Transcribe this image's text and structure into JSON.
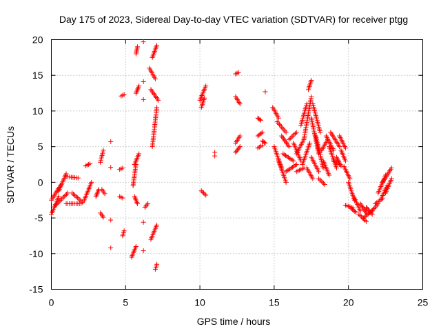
{
  "chart_data": {
    "type": "scatter",
    "title": "Day 175 of 2023, Sidereal Day-to-day VTEC variation (SDTVAR) for receiver ptgg",
    "xlabel": "GPS time / hours",
    "ylabel": "SDTVAR / TECUs",
    "xlim": [
      0,
      25
    ],
    "ylim": [
      -15,
      20
    ],
    "xticks": [
      "0",
      "5",
      "10",
      "15",
      "20",
      "25"
    ],
    "yticks": [
      "-15",
      "-10",
      "-5",
      "0",
      "5",
      "10",
      "15",
      "20"
    ],
    "grid": true,
    "marker": "+",
    "series": [
      {
        "name": "SDTVAR",
        "color": "#ff0000",
        "segments": [
          {
            "x0": 0.0,
            "y0": -4.5,
            "x1": 0.5,
            "y1": -2.0
          },
          {
            "x0": 0.0,
            "y0": -2.5,
            "x1": 0.6,
            "y1": -0.5
          },
          {
            "x0": 0.3,
            "y0": -3.2,
            "x1": 1.1,
            "y1": -1.5
          },
          {
            "x0": 0.5,
            "y0": -1.2,
            "x1": 1.0,
            "y1": 1.2
          },
          {
            "x0": 1.0,
            "y0": 0.8,
            "x1": 1.8,
            "y1": 0.6
          },
          {
            "x0": 1.0,
            "y0": -3.0,
            "x1": 2.0,
            "y1": -3.0
          },
          {
            "x0": 1.4,
            "y0": -1.5,
            "x1": 2.1,
            "y1": -2.8
          },
          {
            "x0": 2.2,
            "y0": -2.6,
            "x1": 2.7,
            "y1": 0.0
          },
          {
            "x0": 2.3,
            "y0": 2.3,
            "x1": 2.6,
            "y1": 2.6
          },
          {
            "x0": 3.0,
            "y0": -2.0,
            "x1": 3.2,
            "y1": -1.0
          },
          {
            "x0": 3.3,
            "y0": 2.8,
            "x1": 3.5,
            "y1": 4.5
          },
          {
            "x0": 3.3,
            "y0": -4.3,
            "x1": 3.5,
            "y1": -4.9
          },
          {
            "x0": 3.4,
            "y0": -1.0,
            "x1": 3.6,
            "y1": -1.6
          },
          {
            "x0": 4.7,
            "y0": 12.1,
            "x1": 4.9,
            "y1": 12.3
          },
          {
            "x0": 4.6,
            "y0": 1.8,
            "x1": 4.8,
            "y1": 2.0
          },
          {
            "x0": 4.6,
            "y0": -2.0,
            "x1": 4.8,
            "y1": -2.2
          },
          {
            "x0": 4.8,
            "y0": -7.5,
            "x1": 4.9,
            "y1": -6.8
          },
          {
            "x0": 5.4,
            "y0": -10.5,
            "x1": 5.7,
            "y1": -9.0
          },
          {
            "x0": 5.5,
            "y0": -0.5,
            "x1": 5.7,
            "y1": 2.5
          },
          {
            "x0": 5.6,
            "y0": 2.5,
            "x1": 5.9,
            "y1": 4.0
          },
          {
            "x0": 5.6,
            "y0": -2.0,
            "x1": 5.8,
            "y1": -3.0
          },
          {
            "x0": 5.7,
            "y0": 18.0,
            "x1": 5.8,
            "y1": 19.0
          },
          {
            "x0": 5.7,
            "y0": 12.5,
            "x1": 5.9,
            "y1": 13.5
          },
          {
            "x0": 6.3,
            "y0": -3.5,
            "x1": 6.5,
            "y1": -3.0
          },
          {
            "x0": 6.6,
            "y0": 16.0,
            "x1": 7.0,
            "y1": 14.5
          },
          {
            "x0": 6.7,
            "y0": 13.0,
            "x1": 7.2,
            "y1": 11.5
          },
          {
            "x0": 6.8,
            "y0": 5.0,
            "x1": 7.1,
            "y1": 10.5
          },
          {
            "x0": 6.8,
            "y0": 17.5,
            "x1": 7.1,
            "y1": 19.2
          },
          {
            "x0": 6.7,
            "y0": -8.0,
            "x1": 7.1,
            "y1": -6.0
          },
          {
            "x0": 7.0,
            "y0": -12.2,
            "x1": 7.1,
            "y1": -11.5
          },
          {
            "x0": 10.0,
            "y0": 11.5,
            "x1": 10.4,
            "y1": 13.5
          },
          {
            "x0": 10.1,
            "y0": 10.5,
            "x1": 10.3,
            "y1": 11.8
          },
          {
            "x0": 10.1,
            "y0": -1.2,
            "x1": 10.4,
            "y1": -1.8
          },
          {
            "x0": 12.4,
            "y0": 15.2,
            "x1": 12.6,
            "y1": 15.4
          },
          {
            "x0": 12.4,
            "y0": 12.0,
            "x1": 12.7,
            "y1": 11.0
          },
          {
            "x0": 12.4,
            "y0": 5.5,
            "x1": 12.7,
            "y1": 6.5
          },
          {
            "x0": 12.4,
            "y0": 4.2,
            "x1": 12.7,
            "y1": 5.0
          },
          {
            "x0": 13.9,
            "y0": 9.0,
            "x1": 14.1,
            "y1": 8.7
          },
          {
            "x0": 13.9,
            "y0": 6.5,
            "x1": 14.2,
            "y1": 7.0
          },
          {
            "x0": 13.9,
            "y0": 4.8,
            "x1": 14.2,
            "y1": 5.2
          },
          {
            "x0": 14.2,
            "y0": 5.8,
            "x1": 14.4,
            "y1": 5.5
          },
          {
            "x0": 14.9,
            "y0": 10.5,
            "x1": 15.3,
            "y1": 9.0
          },
          {
            "x0": 15.0,
            "y0": 5.0,
            "x1": 15.5,
            "y1": 2.0
          },
          {
            "x0": 15.2,
            "y0": 8.5,
            "x1": 15.8,
            "y1": 7.0
          },
          {
            "x0": 15.3,
            "y0": 3.0,
            "x1": 15.8,
            "y1": 0.0
          },
          {
            "x0": 15.5,
            "y0": 6.5,
            "x1": 16.0,
            "y1": 5.0
          },
          {
            "x0": 15.6,
            "y0": 4.0,
            "x1": 16.3,
            "y1": 3.0
          },
          {
            "x0": 15.8,
            "y0": 1.5,
            "x1": 16.5,
            "y1": 2.5
          },
          {
            "x0": 16.0,
            "y0": 6.0,
            "x1": 16.5,
            "y1": 7.0
          },
          {
            "x0": 16.3,
            "y0": 5.5,
            "x1": 16.8,
            "y1": 3.0
          },
          {
            "x0": 16.5,
            "y0": 4.0,
            "x1": 17.0,
            "y1": 6.0
          },
          {
            "x0": 16.5,
            "y0": 1.5,
            "x1": 17.0,
            "y1": 2.0
          },
          {
            "x0": 16.8,
            "y0": 8.0,
            "x1": 17.2,
            "y1": 11.0
          },
          {
            "x0": 16.9,
            "y0": 2.5,
            "x1": 17.4,
            "y1": 5.5
          },
          {
            "x0": 17.0,
            "y0": 6.0,
            "x1": 17.5,
            "y1": 12.0
          },
          {
            "x0": 17.3,
            "y0": 13.0,
            "x1": 17.5,
            "y1": 14.3
          },
          {
            "x0": 17.2,
            "y0": 2.0,
            "x1": 17.6,
            "y1": 0.5
          },
          {
            "x0": 17.5,
            "y0": 9.0,
            "x1": 18.0,
            "y1": 4.0
          },
          {
            "x0": 17.6,
            "y0": 11.0,
            "x1": 18.1,
            "y1": 7.0
          },
          {
            "x0": 17.5,
            "y0": 3.5,
            "x1": 18.0,
            "y1": 1.5
          },
          {
            "x0": 17.8,
            "y0": 6.5,
            "x1": 18.3,
            "y1": 2.0
          },
          {
            "x0": 18.0,
            "y0": 0.5,
            "x1": 18.4,
            "y1": -0.3
          },
          {
            "x0": 18.2,
            "y0": 4.5,
            "x1": 18.6,
            "y1": 6.0
          },
          {
            "x0": 18.3,
            "y0": 3.0,
            "x1": 18.7,
            "y1": 1.0
          },
          {
            "x0": 18.5,
            "y0": 6.5,
            "x1": 19.0,
            "y1": 4.5
          },
          {
            "x0": 18.7,
            "y0": 5.0,
            "x1": 19.2,
            "y1": 2.0
          },
          {
            "x0": 18.8,
            "y0": 7.0,
            "x1": 19.4,
            "y1": 5.0
          },
          {
            "x0": 19.0,
            "y0": 3.0,
            "x1": 19.4,
            "y1": 2.5
          },
          {
            "x0": 19.2,
            "y0": 3.5,
            "x1": 19.5,
            "y1": 2.3
          },
          {
            "x0": 19.4,
            "y0": 6.5,
            "x1": 19.8,
            "y1": 4.8
          },
          {
            "x0": 19.5,
            "y0": 4.5,
            "x1": 19.8,
            "y1": 3.0
          },
          {
            "x0": 19.7,
            "y0": 2.2,
            "x1": 20.1,
            "y1": 0.5
          },
          {
            "x0": 20.0,
            "y0": 0.0,
            "x1": 20.4,
            "y1": -2.5
          },
          {
            "x0": 19.8,
            "y0": -3.2,
            "x1": 20.3,
            "y1": -3.6
          },
          {
            "x0": 20.2,
            "y0": -3.7,
            "x1": 20.5,
            "y1": -4.2
          },
          {
            "x0": 20.4,
            "y0": -2.2,
            "x1": 20.8,
            "y1": -4.0
          },
          {
            "x0": 20.7,
            "y0": -4.5,
            "x1": 21.2,
            "y1": -5.5
          },
          {
            "x0": 20.8,
            "y0": -3.0,
            "x1": 21.2,
            "y1": -4.3
          },
          {
            "x0": 21.0,
            "y0": -5.0,
            "x1": 21.6,
            "y1": -4.0
          },
          {
            "x0": 21.2,
            "y0": -3.5,
            "x1": 21.6,
            "y1": -4.5
          },
          {
            "x0": 21.5,
            "y0": -4.2,
            "x1": 22.0,
            "y1": -3.0
          },
          {
            "x0": 21.8,
            "y0": -3.0,
            "x1": 22.3,
            "y1": -2.3
          },
          {
            "x0": 22.0,
            "y0": -1.5,
            "x1": 22.5,
            "y1": 1.0
          },
          {
            "x0": 22.2,
            "y0": -2.3,
            "x1": 22.6,
            "y1": -0.5
          },
          {
            "x0": 22.3,
            "y0": 0.0,
            "x1": 22.9,
            "y1": 2.0
          },
          {
            "x0": 22.5,
            "y0": -1.5,
            "x1": 22.9,
            "y1": 0.5
          }
        ],
        "points": [
          {
            "x": 4.0,
            "y": 5.7
          },
          {
            "x": 4.0,
            "y": 2.1
          },
          {
            "x": 4.0,
            "y": -5.3
          },
          {
            "x": 4.0,
            "y": -9.2
          },
          {
            "x": 6.2,
            "y": 19.7
          },
          {
            "x": 6.2,
            "y": 14.1
          },
          {
            "x": 6.2,
            "y": 11.6
          },
          {
            "x": 6.2,
            "y": -5.6
          },
          {
            "x": 6.2,
            "y": -9.6
          },
          {
            "x": 11.0,
            "y": 4.2
          },
          {
            "x": 11.0,
            "y": 3.7
          },
          {
            "x": 14.4,
            "y": 12.7
          }
        ]
      }
    ]
  }
}
